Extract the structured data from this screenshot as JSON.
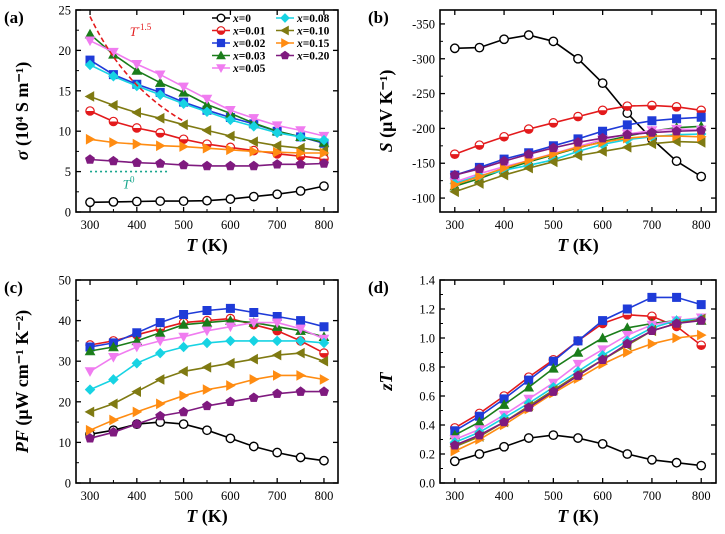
{
  "figure": {
    "series_colors": [
      "#000000",
      "#e31a1c",
      "#1f3bd8",
      "#1a7d1a",
      "#f07cf0",
      "#17d3e3",
      "#7f7a12",
      "#ff8c12",
      "#7f1a7f"
    ]
  },
  "legend": {
    "entries": [
      {
        "name": "x=0",
        "var": "x",
        "val": "=0",
        "color": "#000000",
        "marker": "circle-open"
      },
      {
        "name": "x=0.01",
        "var": "x",
        "val": "=0.01",
        "color": "#e31a1c",
        "marker": "circle-half"
      },
      {
        "name": "x=0.02",
        "var": "x",
        "val": "=0.02",
        "color": "#1f3bd8",
        "marker": "square"
      },
      {
        "name": "x=0.03",
        "var": "x",
        "val": "=0.03",
        "color": "#1a7d1a",
        "marker": "triangle-up"
      },
      {
        "name": "x=0.05",
        "var": "x",
        "val": "=0.05",
        "color": "#f07cf0",
        "marker": "triangle-down"
      },
      {
        "name": "x=0.08",
        "var": "x",
        "val": "=0.08",
        "color": "#17d3e3",
        "marker": "diamond"
      },
      {
        "name": "x=0.10",
        "var": "x",
        "val": "=0.10",
        "color": "#7f7a12",
        "marker": "triangle-left"
      },
      {
        "name": "x=0.15",
        "var": "x",
        "val": "=0.15",
        "color": "#ff8c12",
        "marker": "triangle-right"
      },
      {
        "name": "x=0.20",
        "var": "x",
        "val": "=0.20",
        "color": "#7f1a7f",
        "marker": "pentagon"
      }
    ]
  },
  "chart_data": [
    {
      "panel": "(a)",
      "type": "line",
      "xlabel": "T (K)",
      "ylabel": "σ (10⁴ S m⁻¹)",
      "xlim": [
        270,
        830
      ],
      "ylim": [
        0,
        25
      ],
      "xticks": [
        300,
        400,
        500,
        600,
        700,
        800
      ],
      "yticks": [
        0,
        5,
        10,
        15,
        20,
        25
      ],
      "x": [
        300,
        350,
        400,
        450,
        500,
        550,
        600,
        650,
        700,
        750,
        800
      ],
      "series": [
        {
          "name": "x=0",
          "values": [
            1.2,
            1.25,
            1.3,
            1.35,
            1.35,
            1.4,
            1.6,
            1.9,
            2.2,
            2.6,
            3.2
          ]
        },
        {
          "name": "x=0.01",
          "values": [
            12.5,
            11.2,
            10.4,
            9.8,
            9.0,
            8.4,
            8.0,
            7.6,
            7.2,
            6.9,
            6.6
          ]
        },
        {
          "name": "x=0.02",
          "values": [
            18.8,
            17.0,
            15.8,
            14.8,
            13.6,
            12.6,
            11.7,
            10.9,
            10.0,
            9.3,
            8.5
          ]
        },
        {
          "name": "x=0.03",
          "values": [
            22.0,
            19.5,
            17.5,
            16.0,
            14.8,
            13.3,
            12.2,
            11.0,
            10.0,
            9.3,
            8.6
          ]
        },
        {
          "name": "x=0.05",
          "values": [
            21.2,
            19.8,
            18.3,
            17.0,
            15.5,
            14.0,
            12.6,
            11.6,
            10.7,
            10.1,
            9.4
          ]
        },
        {
          "name": "x=0.08",
          "values": [
            18.2,
            16.8,
            15.6,
            14.5,
            13.4,
            12.4,
            11.4,
            10.6,
            9.8,
            9.3,
            8.9
          ]
        },
        {
          "name": "x=0.10",
          "values": [
            14.3,
            13.2,
            12.3,
            11.6,
            10.8,
            10.1,
            9.4,
            8.7,
            8.2,
            7.9,
            7.6
          ]
        },
        {
          "name": "x=0.15",
          "values": [
            9.0,
            8.6,
            8.4,
            8.2,
            8.1,
            7.9,
            7.7,
            7.5,
            7.4,
            7.3,
            7.3
          ]
        },
        {
          "name": "x=0.20",
          "values": [
            6.5,
            6.3,
            6.1,
            6.0,
            5.8,
            5.7,
            5.7,
            5.7,
            5.9,
            5.9,
            6.0
          ]
        }
      ],
      "annotations": [
        {
          "base": "T",
          "exp": "-1.5",
          "color": "#e31a1c"
        },
        {
          "base": "T",
          "exp": "0",
          "color": "#17a58c"
        }
      ]
    },
    {
      "panel": "(b)",
      "type": "line",
      "xlabel": "T (K)",
      "ylabel": "S (μV K⁻¹)",
      "xlim": [
        270,
        830
      ],
      "ylim": [
        -80,
        -370
      ],
      "xticks": [
        300,
        400,
        500,
        600,
        700,
        800
      ],
      "yticks": [
        -100,
        -150,
        -200,
        -250,
        -300,
        -350
      ],
      "x": [
        300,
        350,
        400,
        450,
        500,
        550,
        600,
        650,
        700,
        750,
        800
      ],
      "series": [
        {
          "name": "x=0",
          "values": [
            -315,
            -316,
            -328,
            -334,
            -325,
            -300,
            -265,
            -222,
            -185,
            -153,
            -131
          ]
        },
        {
          "name": "x=0.01",
          "values": [
            -163,
            -176,
            -188,
            -199,
            -208,
            -217,
            -226,
            -232,
            -233,
            -231,
            -226
          ]
        },
        {
          "name": "x=0.02",
          "values": [
            -133,
            -144,
            -156,
            -165,
            -175,
            -185,
            -196,
            -205,
            -211,
            -214,
            -216
          ]
        },
        {
          "name": "x=0.03",
          "values": [
            -117,
            -128,
            -141,
            -152,
            -162,
            -172,
            -181,
            -189,
            -196,
            -201,
            -203
          ]
        },
        {
          "name": "x=0.05",
          "values": [
            -123,
            -135,
            -145,
            -154,
            -164,
            -174,
            -184,
            -192,
            -197,
            -199,
            -198
          ]
        },
        {
          "name": "x=0.08",
          "values": [
            -121,
            -132,
            -140,
            -147,
            -155,
            -167,
            -177,
            -184,
            -188,
            -191,
            -192
          ]
        },
        {
          "name": "x=0.10",
          "values": [
            -109,
            -121,
            -133,
            -143,
            -152,
            -161,
            -167,
            -173,
            -178,
            -181,
            -180
          ]
        },
        {
          "name": "x=0.15",
          "values": [
            -119,
            -131,
            -143,
            -154,
            -163,
            -173,
            -180,
            -186,
            -189,
            -189,
            -188
          ]
        },
        {
          "name": "x=0.20",
          "values": [
            -133,
            -142,
            -153,
            -163,
            -172,
            -180,
            -186,
            -191,
            -194,
            -196,
            -197
          ]
        }
      ]
    },
    {
      "panel": "(c)",
      "type": "line",
      "xlabel": "T (K)",
      "ylabel": "PF (μW cm⁻¹ K⁻²)",
      "xlim": [
        270,
        830
      ],
      "ylim": [
        0,
        50
      ],
      "xticks": [
        300,
        400,
        500,
        600,
        700,
        800
      ],
      "yticks": [
        0,
        10,
        20,
        30,
        40,
        50
      ],
      "x": [
        300,
        350,
        400,
        450,
        500,
        550,
        600,
        650,
        700,
        750,
        800
      ],
      "series": [
        {
          "name": "x=0",
          "values": [
            12.0,
            13.0,
            14.5,
            15.0,
            14.5,
            13.0,
            11.0,
            9.0,
            7.5,
            6.3,
            5.5
          ]
        },
        {
          "name": "x=0.01",
          "values": [
            34.0,
            35.0,
            36.5,
            38.0,
            39.5,
            40.0,
            40.5,
            39.0,
            37.5,
            35.0,
            32.0
          ]
        },
        {
          "name": "x=0.02",
          "values": [
            33.5,
            34.5,
            37.0,
            39.5,
            41.5,
            42.5,
            43.0,
            42.0,
            41.0,
            40.0,
            38.5
          ]
        },
        {
          "name": "x=0.03",
          "values": [
            32.5,
            33.5,
            35.0,
            37.0,
            39.0,
            39.5,
            40.0,
            39.5,
            38.5,
            37.5,
            36.0
          ]
        },
        {
          "name": "x=0.05",
          "values": [
            27.5,
            31.0,
            33.5,
            35.0,
            36.0,
            37.5,
            38.5,
            39.5,
            39.5,
            38.0,
            35.5
          ]
        },
        {
          "name": "x=0.08",
          "values": [
            23.0,
            25.5,
            29.5,
            32.0,
            33.5,
            34.5,
            35.0,
            35.0,
            35.0,
            35.0,
            34.5
          ]
        },
        {
          "name": "x=0.10",
          "values": [
            17.5,
            19.5,
            22.5,
            25.5,
            27.5,
            28.5,
            29.5,
            30.5,
            31.5,
            32.0,
            30.0
          ]
        },
        {
          "name": "x=0.15",
          "values": [
            13.0,
            15.5,
            17.5,
            19.5,
            21.5,
            23.0,
            24.0,
            25.5,
            26.5,
            26.5,
            25.5
          ]
        },
        {
          "name": "x=0.20",
          "values": [
            11.0,
            12.5,
            14.5,
            16.5,
            17.5,
            19.0,
            20.0,
            21.0,
            22.0,
            22.5,
            22.5
          ]
        }
      ]
    },
    {
      "panel": "(d)",
      "type": "line",
      "xlabel": "T (K)",
      "ylabel": "zT",
      "xlim": [
        270,
        830
      ],
      "ylim": [
        0,
        1.4
      ],
      "xticks": [
        300,
        400,
        500,
        600,
        700,
        800
      ],
      "yticks": [
        0,
        0.2,
        0.4,
        0.6,
        0.8,
        1.0,
        1.2,
        1.4
      ],
      "x": [
        300,
        350,
        400,
        450,
        500,
        550,
        600,
        650,
        700,
        750,
        800
      ],
      "series": [
        {
          "name": "x=0",
          "values": [
            0.15,
            0.2,
            0.25,
            0.31,
            0.33,
            0.31,
            0.27,
            0.2,
            0.16,
            0.14,
            0.12
          ]
        },
        {
          "name": "x=0.01",
          "values": [
            0.38,
            0.48,
            0.6,
            0.73,
            0.85,
            0.98,
            1.1,
            1.16,
            1.15,
            1.08,
            0.95
          ]
        },
        {
          "name": "x=0.02",
          "values": [
            0.36,
            0.46,
            0.58,
            0.71,
            0.84,
            0.98,
            1.12,
            1.2,
            1.28,
            1.28,
            1.23
          ]
        },
        {
          "name": "x=0.03",
          "values": [
            0.33,
            0.42,
            0.54,
            0.66,
            0.79,
            0.9,
            1.0,
            1.07,
            1.1,
            1.12,
            1.12
          ]
        },
        {
          "name": "x=0.05",
          "values": [
            0.3,
            0.37,
            0.47,
            0.58,
            0.69,
            0.82,
            0.92,
            1.02,
            1.09,
            1.12,
            1.14
          ]
        },
        {
          "name": "x=0.08",
          "values": [
            0.28,
            0.35,
            0.45,
            0.55,
            0.66,
            0.77,
            0.88,
            0.98,
            1.07,
            1.12,
            1.13
          ]
        },
        {
          "name": "x=0.10",
          "values": [
            0.25,
            0.32,
            0.42,
            0.53,
            0.64,
            0.75,
            0.85,
            0.95,
            1.05,
            1.1,
            1.13
          ]
        },
        {
          "name": "x=0.15",
          "values": [
            0.22,
            0.3,
            0.4,
            0.51,
            0.62,
            0.72,
            0.82,
            0.9,
            0.96,
            1.0,
            1.02
          ]
        },
        {
          "name": "x=0.20",
          "values": [
            0.26,
            0.33,
            0.42,
            0.52,
            0.63,
            0.74,
            0.85,
            0.96,
            1.05,
            1.1,
            1.12
          ]
        }
      ]
    }
  ]
}
